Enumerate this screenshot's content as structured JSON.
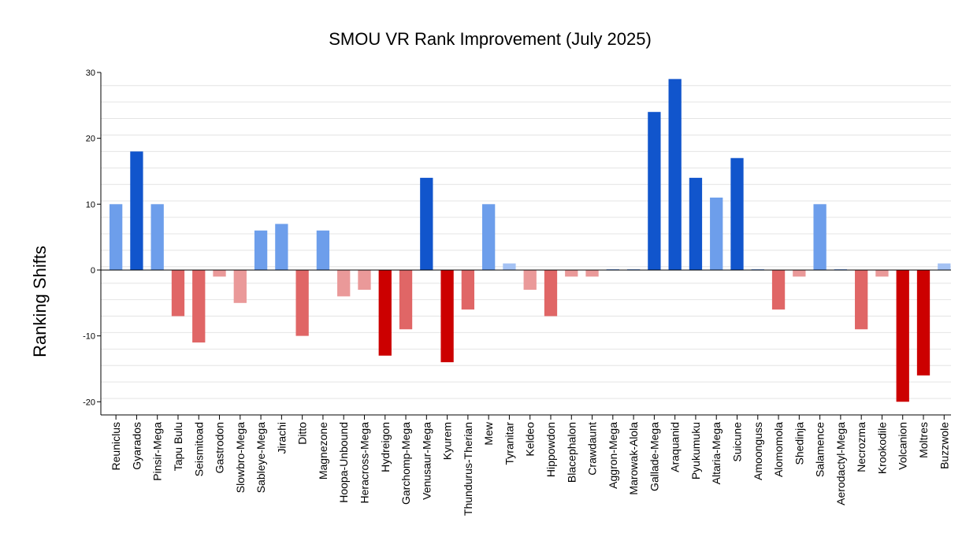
{
  "chart_data": {
    "type": "bar",
    "title": "SMOU VR Rank Improvement (July 2025)",
    "xlabel": "",
    "ylabel": "Ranking Shifts",
    "ylim": [
      -22,
      30
    ],
    "yticks": [
      -20,
      -10,
      0,
      10,
      20,
      30
    ],
    "grid": true,
    "categories": [
      "Reuniclus",
      "Gyarados",
      "Pinsir-Mega",
      "Tapu Bulu",
      "Seismitoad",
      "Gastrodon",
      "Slowbro-Mega",
      "Sableye-Mega",
      "Jirachi",
      "Ditto",
      "Magnezone",
      "Hoopa-Unbound",
      "Heracross-Mega",
      "Hydreigon",
      "Garchomp-Mega",
      "Venusaur-Mega",
      "Kyurem",
      "Thundurus-Therian",
      "Mew",
      "Tyranitar",
      "Keldeo",
      "Hippowdon",
      "Blacephalon",
      "Crawdaunt",
      "Aggron-Mega",
      "Marowak-Alola",
      "Gallade-Mega",
      "Araquanid",
      "Pyukumuku",
      "Altaria-Mega",
      "Suicune",
      "Amoonguss",
      "Alomomola",
      "Shedinja",
      "Salamence",
      "Aerodactyl-Mega",
      "Necrozma",
      "Krookodile",
      "Volcanion",
      "Moltres",
      "Buzzwole"
    ],
    "values": [
      10,
      18,
      10,
      -7,
      -11,
      -1,
      -5,
      6,
      7,
      -10,
      6,
      -4,
      -3,
      -13,
      -9,
      14,
      -14,
      -6,
      10,
      1,
      -3,
      -7,
      -1,
      -1,
      0,
      0,
      24,
      29,
      14,
      11,
      17,
      0,
      -6,
      -1,
      10,
      0,
      -9,
      -1,
      -20,
      -16,
      1
    ],
    "colors": {
      "pos_strong": "#1155cc",
      "pos_light": "#6d9eeb",
      "pos_faint": "#a4c2f4",
      "neg_strong": "#cc0000",
      "neg_mid": "#e06666",
      "neg_light": "#ea9999",
      "axis": "#000000",
      "grid_major": "#c8c8c8",
      "grid_minor": "#e4e4e4"
    }
  }
}
